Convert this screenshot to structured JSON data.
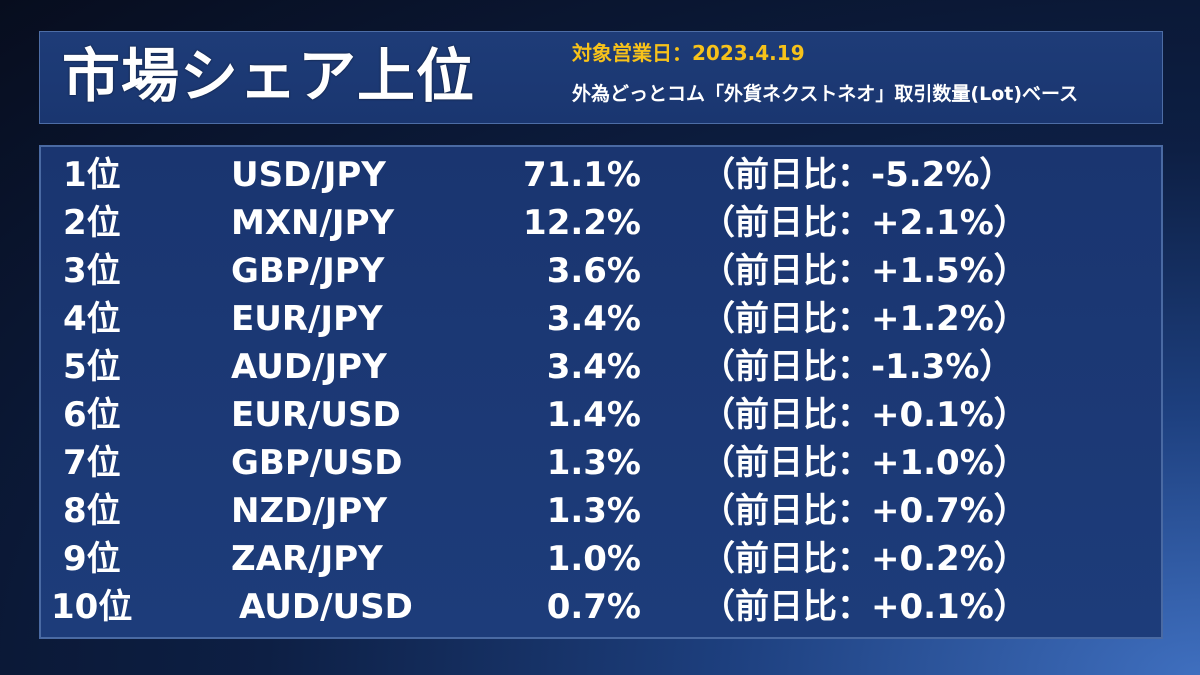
{
  "header": {
    "title": "市場シェア上位",
    "date": "対象営業日：2023.4.19",
    "basis": "外為どっとコム「外貨ネクストネオ」取引数量(Lot)ベース"
  },
  "rows": [
    {
      "rank": "1位",
      "pair": "USD/JPY",
      "share": "71.1%",
      "change": "（前日比：-5.2%）"
    },
    {
      "rank": "2位",
      "pair": "MXN/JPY",
      "share": "12.2%",
      "change": "（前日比：+2.1%）"
    },
    {
      "rank": "3位",
      "pair": "GBP/JPY",
      "share": "3.6%",
      "change": "（前日比：+1.5%）"
    },
    {
      "rank": "4位",
      "pair": "EUR/JPY",
      "share": "3.4%",
      "change": "（前日比：+1.2%）"
    },
    {
      "rank": "5位",
      "pair": "AUD/JPY",
      "share": "3.4%",
      "change": "（前日比：-1.3%）"
    },
    {
      "rank": "6位",
      "pair": "EUR/USD",
      "share": "1.4%",
      "change": "（前日比：+0.1%）"
    },
    {
      "rank": "7位",
      "pair": "GBP/USD",
      "share": "1.3%",
      "change": "（前日比：+1.0%）"
    },
    {
      "rank": "8位",
      "pair": "NZD/JPY",
      "share": "1.3%",
      "change": "（前日比：+0.7%）"
    },
    {
      "rank": "9位",
      "pair": "ZAR/JPY",
      "share": "1.0%",
      "change": "（前日比：+0.2%）"
    },
    {
      "rank": "10位",
      "pair": "AUD/USD",
      "share": "0.7%",
      "change": "（前日比：+0.1%）"
    }
  ]
}
